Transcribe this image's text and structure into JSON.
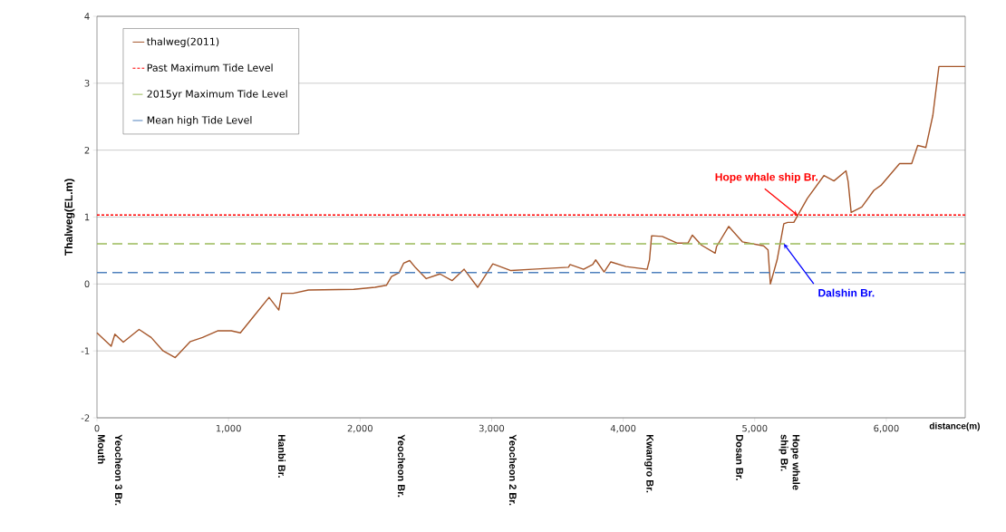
{
  "chart_data": {
    "type": "line",
    "xlabel": "distance(m)",
    "ylabel": "Thalweg(EL.m)",
    "xlim": [
      0,
      6600
    ],
    "ylim": [
      -2,
      4
    ],
    "xticks": [
      0,
      {
        "value": 1000,
        "label": "1,000"
      },
      {
        "value": 2000,
        "label": "2,000"
      },
      {
        "value": 3000,
        "label": "3,000"
      },
      {
        "value": 4000,
        "label": "4,000"
      },
      {
        "value": 5000,
        "label": "5,000"
      },
      {
        "value": 6000,
        "label": "6,000"
      }
    ],
    "yticks": [
      -2,
      -1,
      0,
      1,
      2,
      3,
      4
    ],
    "grid": "y",
    "legend": "top left",
    "marker": "none",
    "series": [
      {
        "name": "thalweg(2011)",
        "color": "#a5562a",
        "line_style": "solid",
        "x": [
          0,
          108,
          136,
          200,
          320,
          412,
          503,
          595,
          710,
          802,
          917,
          1021,
          1090,
          1193,
          1308,
          1382,
          1405,
          1492,
          1607,
          1952,
          2113,
          2200,
          2239,
          2297,
          2331,
          2377,
          2423,
          2503,
          2607,
          2699,
          2791,
          2894,
          3009,
          3147,
          3308,
          3492,
          3584,
          3596,
          3699,
          3768,
          3791,
          3855,
          3906,
          4021,
          4182,
          4200,
          4216,
          4297,
          4412,
          4492,
          4526,
          4595,
          4699,
          4710,
          4802,
          4906,
          5067,
          5101,
          5119,
          5170,
          5221,
          5251,
          5297,
          5400,
          5526,
          5602,
          5694,
          5710,
          5733,
          5814,
          5906,
          5963,
          6101,
          6193,
          6239,
          6301,
          6354,
          6400,
          6600
        ],
        "values": [
          -0.73,
          -0.93,
          -0.75,
          -0.87,
          -0.68,
          -0.8,
          -1.0,
          -1.1,
          -0.86,
          -0.8,
          -0.7,
          -0.7,
          -0.73,
          -0.48,
          -0.2,
          -0.39,
          -0.14,
          -0.14,
          -0.09,
          -0.08,
          -0.05,
          -0.02,
          0.11,
          0.17,
          0.31,
          0.35,
          0.24,
          0.08,
          0.15,
          0.05,
          0.22,
          -0.05,
          0.3,
          0.2,
          0.22,
          0.24,
          0.25,
          0.29,
          0.22,
          0.29,
          0.36,
          0.18,
          0.33,
          0.26,
          0.22,
          0.36,
          0.72,
          0.71,
          0.61,
          0.61,
          0.73,
          0.58,
          0.46,
          0.56,
          0.86,
          0.63,
          0.57,
          0.51,
          0.0,
          0.36,
          0.9,
          0.92,
          0.92,
          1.28,
          1.62,
          1.54,
          1.69,
          1.53,
          1.07,
          1.15,
          1.4,
          1.48,
          1.8,
          1.8,
          2.07,
          2.04,
          2.52,
          3.25,
          3.25
        ]
      },
      {
        "name": "Past Maximum Tide Level",
        "color": "#ff0000",
        "line_style": "dotted",
        "x": [
          0,
          6600
        ],
        "values": [
          1.03,
          1.03
        ]
      },
      {
        "name": "2015yr Maximum Tide Level",
        "color": "#9bbb59",
        "line_style": "dashed",
        "x": [
          0,
          6600
        ],
        "values": [
          0.6,
          0.6
        ]
      },
      {
        "name": "Mean high Tide Level",
        "color": "#4f81bd",
        "line_style": "dashed",
        "x": [
          0,
          6600
        ],
        "values": [
          0.17,
          0.17
        ]
      }
    ],
    "annotations": [
      "Mouth",
      "Yeocheon 3 Br.",
      "Hanbi Br.",
      "Yeocheon Br.",
      "Yeocheon 2 Br.",
      "Kwangro Br.",
      "Dosan Br.",
      "Hope whale ship Br.",
      {
        "text": "Hope whale ship Br.",
        "x": 5324,
        "y": 1.03
      },
      {
        "text": "Dalshin Br.",
        "x": 5221,
        "y": 0.6
      }
    ]
  }
}
